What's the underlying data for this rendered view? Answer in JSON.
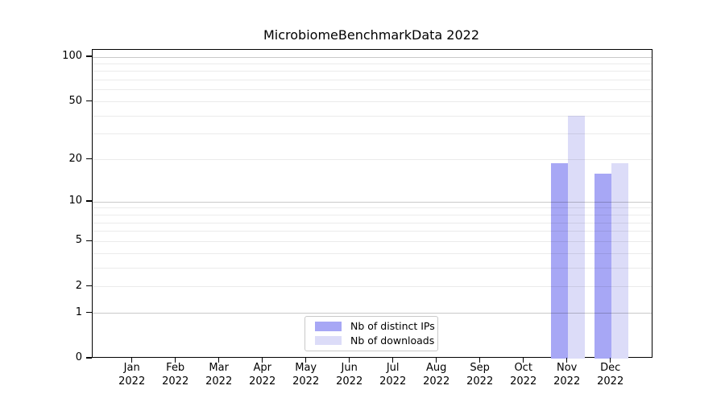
{
  "title": "MicrobiomeBenchmarkData 2022",
  "legend": {
    "items": [
      {
        "label": "Nb of distinct IPs",
        "color": "#a7a7f5"
      },
      {
        "label": "Nb of downloads",
        "color": "#dcdcf8"
      }
    ]
  },
  "chart_data": {
    "type": "bar",
    "title": "MicrobiomeBenchmarkData 2022",
    "x_categories": [
      {
        "month": "Jan",
        "year": "2022"
      },
      {
        "month": "Feb",
        "year": "2022"
      },
      {
        "month": "Mar",
        "year": "2022"
      },
      {
        "month": "Apr",
        "year": "2022"
      },
      {
        "month": "May",
        "year": "2022"
      },
      {
        "month": "Jun",
        "year": "2022"
      },
      {
        "month": "Jul",
        "year": "2022"
      },
      {
        "month": "Aug",
        "year": "2022"
      },
      {
        "month": "Sep",
        "year": "2022"
      },
      {
        "month": "Oct",
        "year": "2022"
      },
      {
        "month": "Nov",
        "year": "2022"
      },
      {
        "month": "Dec",
        "year": "2022"
      }
    ],
    "series": [
      {
        "name": "Nb of distinct IPs",
        "color": "#a7a7f5",
        "values": [
          0,
          0,
          0,
          0,
          0,
          0,
          0,
          0,
          0,
          0,
          19,
          16
        ]
      },
      {
        "name": "Nb of downloads",
        "color": "#dcdcf8",
        "values": [
          0,
          0,
          0,
          0,
          0,
          0,
          0,
          0,
          0,
          0,
          40,
          19
        ]
      }
    ],
    "xlabel": "",
    "ylabel": "",
    "yscale": "log1p",
    "ylim": [
      0,
      100
    ],
    "yticks": [
      0,
      1,
      2,
      5,
      10,
      20,
      50,
      100
    ],
    "minor_yticks": [
      3,
      4,
      6,
      7,
      8,
      9,
      30,
      40,
      60,
      70,
      80,
      90
    ],
    "grid": "horizontal-major-and-minor",
    "legend_position": "inside-bottom-center"
  }
}
